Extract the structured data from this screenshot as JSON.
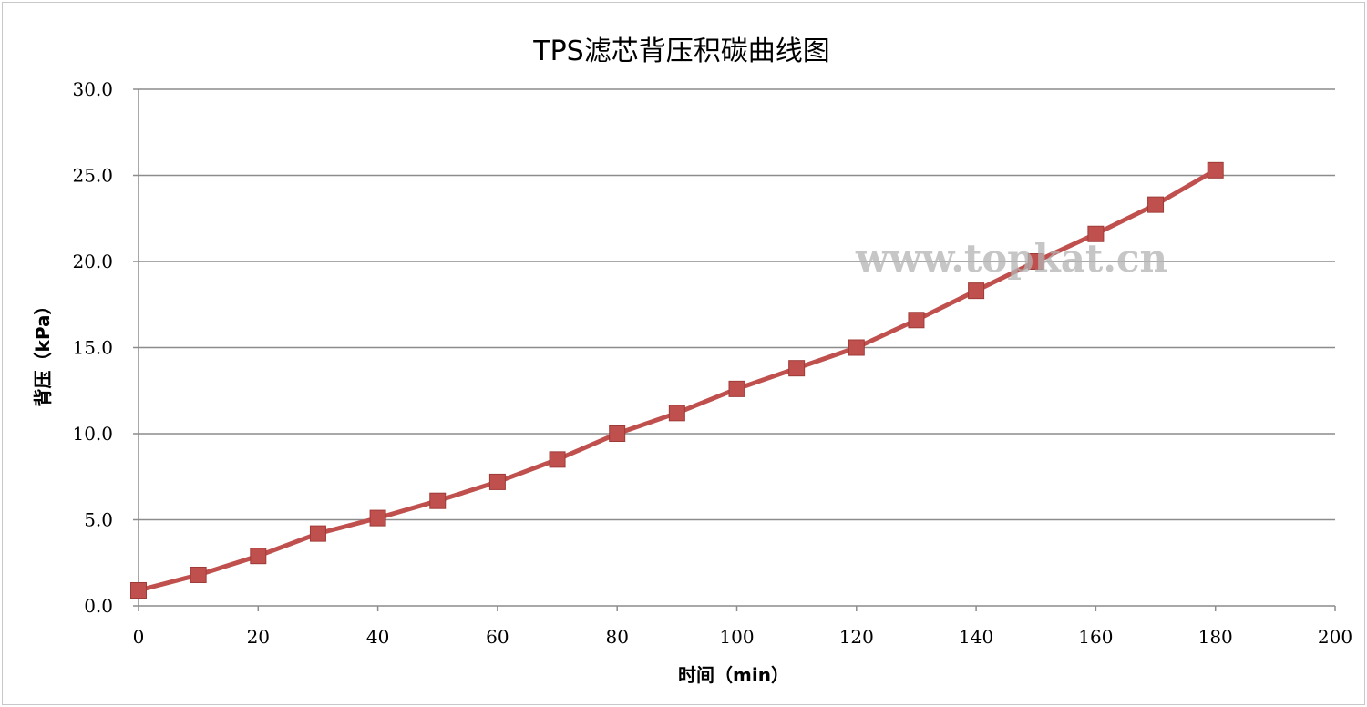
{
  "chart_data": {
    "type": "line",
    "title": "TPS滤芯背压积碳曲线图",
    "xlabel": "时间（min）",
    "ylabel": "背压（kPa）",
    "xlim": [
      0,
      200
    ],
    "ylim": [
      0,
      30
    ],
    "x_ticks": [
      "0",
      "20",
      "40",
      "60",
      "80",
      "100",
      "120",
      "140",
      "160",
      "180",
      "200"
    ],
    "y_ticks": [
      "0.0",
      "5.0",
      "10.0",
      "15.0",
      "20.0",
      "25.0",
      "30.0"
    ],
    "grid": "horizontal",
    "series": [
      {
        "color": "#c0504d",
        "marker": "square",
        "x": [
          0,
          10,
          20,
          30,
          40,
          50,
          60,
          70,
          80,
          90,
          100,
          110,
          120,
          130,
          140,
          150,
          160,
          170,
          180
        ],
        "y": [
          0.9,
          1.8,
          2.9,
          4.2,
          5.1,
          6.1,
          7.2,
          8.5,
          10.0,
          11.2,
          12.6,
          13.8,
          15.0,
          16.6,
          18.3,
          20.0,
          21.6,
          23.3,
          25.3
        ]
      }
    ]
  },
  "watermark": "www.topkat.cn"
}
